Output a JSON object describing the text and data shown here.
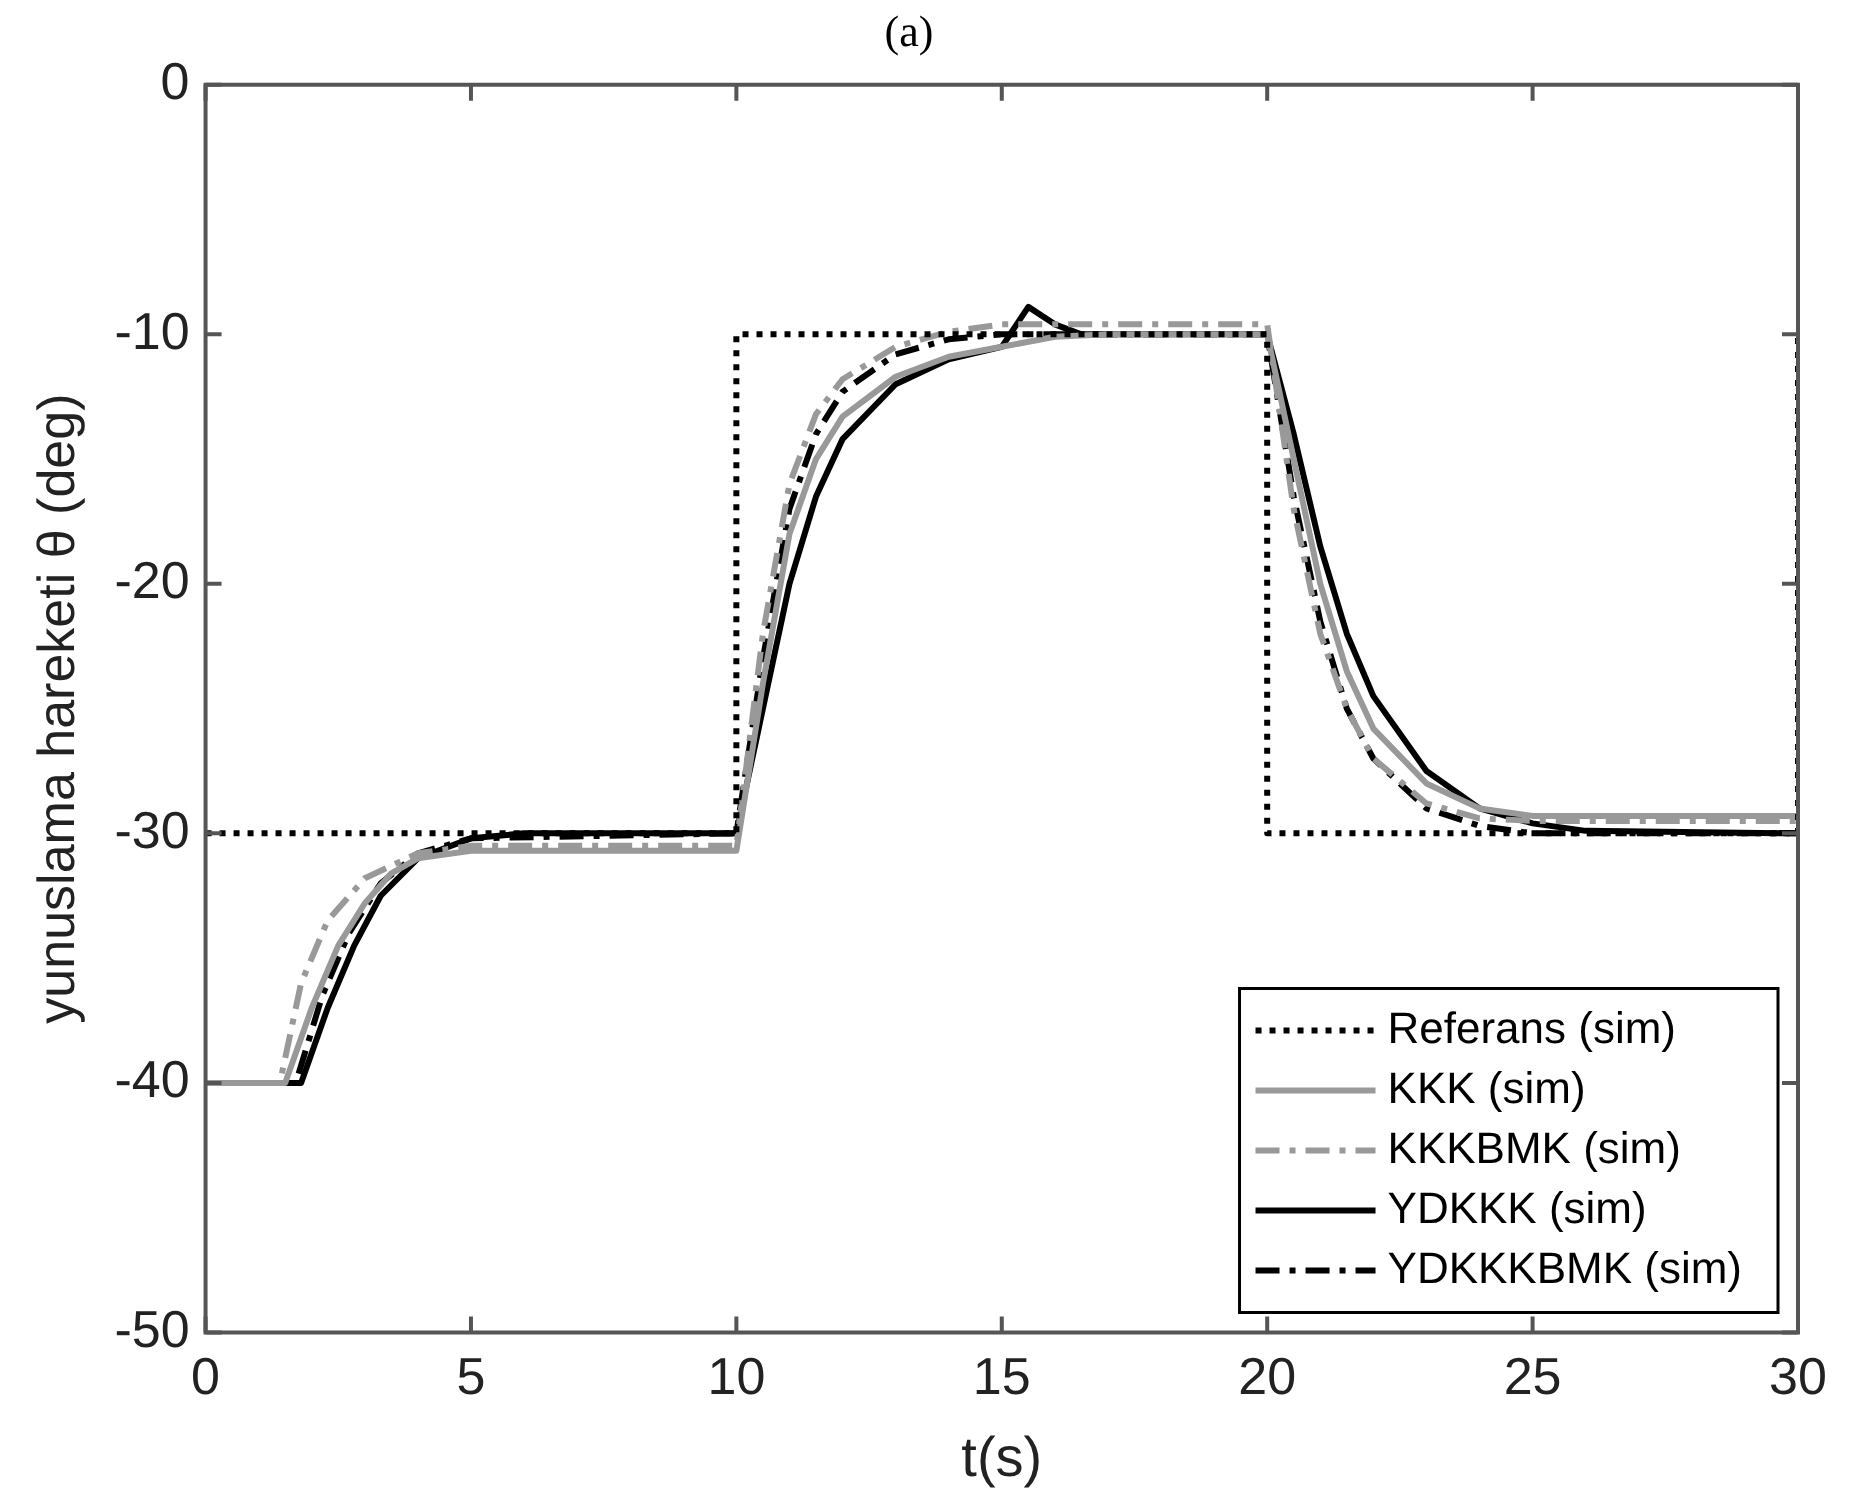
{
  "chart_data": {
    "type": "line",
    "title": "(a)",
    "xlabel": "t(s)",
    "ylabel": "yunuslama hareketi θ (deg)",
    "xlim": [
      0,
      30
    ],
    "xticks": [
      0,
      5,
      10,
      15,
      20,
      25,
      30
    ],
    "ylim": [
      -50,
      0
    ],
    "yticks": [
      -50,
      -40,
      -30,
      -20,
      -10,
      0
    ],
    "grid": false,
    "legend": "bottom right",
    "marker": "none",
    "series": [
      {
        "name": "Referans (sim)",
        "color": "#000000",
        "line_style": "dotted",
        "x": [
          0,
          10,
          10,
          20,
          20,
          30,
          30
        ],
        "values": [
          -30,
          -30,
          -10,
          -10,
          -30,
          -30,
          -10
        ]
      },
      {
        "name": "KKK (sim)",
        "color": "#999999",
        "line_style": "solid",
        "x": [
          0,
          1.5,
          2,
          2.5,
          3,
          3.5,
          4,
          5,
          10,
          10.5,
          11,
          11.5,
          12,
          13,
          14,
          15,
          16,
          17,
          20,
          20.5,
          21,
          21.5,
          22,
          23,
          24,
          25,
          30
        ],
        "values": [
          -40,
          -40,
          -37,
          -34.5,
          -32.8,
          -31.6,
          -31,
          -30.7,
          -30.7,
          -24,
          -18,
          -15,
          -13.3,
          -11.7,
          -10.9,
          -10.5,
          -10.1,
          -10,
          -10,
          -15,
          -20,
          -23.5,
          -25.8,
          -28,
          -29,
          -29.3,
          -29.3
        ]
      },
      {
        "name": "KKKBMK (sim)",
        "color": "#999999",
        "line_style": "dashdot",
        "x": [
          0,
          1.4,
          1.8,
          2.3,
          3,
          4,
          5,
          10,
          10.5,
          11,
          11.5,
          12,
          13,
          14,
          15,
          20,
          20.5,
          21,
          21.5,
          22,
          23,
          24,
          25,
          30
        ],
        "values": [
          -40,
          -40,
          -36,
          -33.5,
          -31.8,
          -30.8,
          -30.5,
          -30.5,
          -22,
          -16,
          -13.2,
          -11.8,
          -10.5,
          -9.9,
          -9.6,
          -9.6,
          -17,
          -22,
          -25,
          -27,
          -28.8,
          -29.4,
          -29.5,
          -29.5
        ]
      },
      {
        "name": "YDKKK (sim)",
        "color": "#000000",
        "line_style": "solid",
        "x": [
          0,
          1.8,
          2.3,
          2.8,
          3.3,
          4,
          5,
          6,
          10,
          10.5,
          11,
          11.5,
          12,
          13,
          14,
          15,
          15.5,
          16,
          16.5,
          20,
          20.5,
          21,
          21.5,
          22,
          23,
          24,
          25,
          26,
          30
        ],
        "values": [
          -40,
          -40,
          -37,
          -34.5,
          -32.5,
          -31,
          -30.2,
          -30,
          -30,
          -25,
          -20,
          -16.5,
          -14.2,
          -12,
          -11,
          -10.5,
          -8.9,
          -9.6,
          -10,
          -10,
          -14,
          -18.5,
          -22,
          -24.5,
          -27.5,
          -29,
          -29.6,
          -29.9,
          -30
        ]
      },
      {
        "name": "YDKKKBMK (sim)",
        "color": "#000000",
        "line_style": "dashdot",
        "x": [
          0,
          1.7,
          2.2,
          2.7,
          3.3,
          4,
          5,
          10,
          10.5,
          11,
          11.5,
          12,
          13,
          14,
          15,
          20,
          20.5,
          21,
          21.5,
          22,
          23,
          24,
          25,
          30
        ],
        "values": [
          -40,
          -40,
          -36.5,
          -34,
          -32,
          -30.8,
          -30.2,
          -30,
          -23,
          -17,
          -14,
          -12.3,
          -10.8,
          -10.2,
          -10,
          -10,
          -16.5,
          -21.5,
          -25,
          -27,
          -29,
          -29.7,
          -30,
          -30
        ]
      }
    ]
  }
}
